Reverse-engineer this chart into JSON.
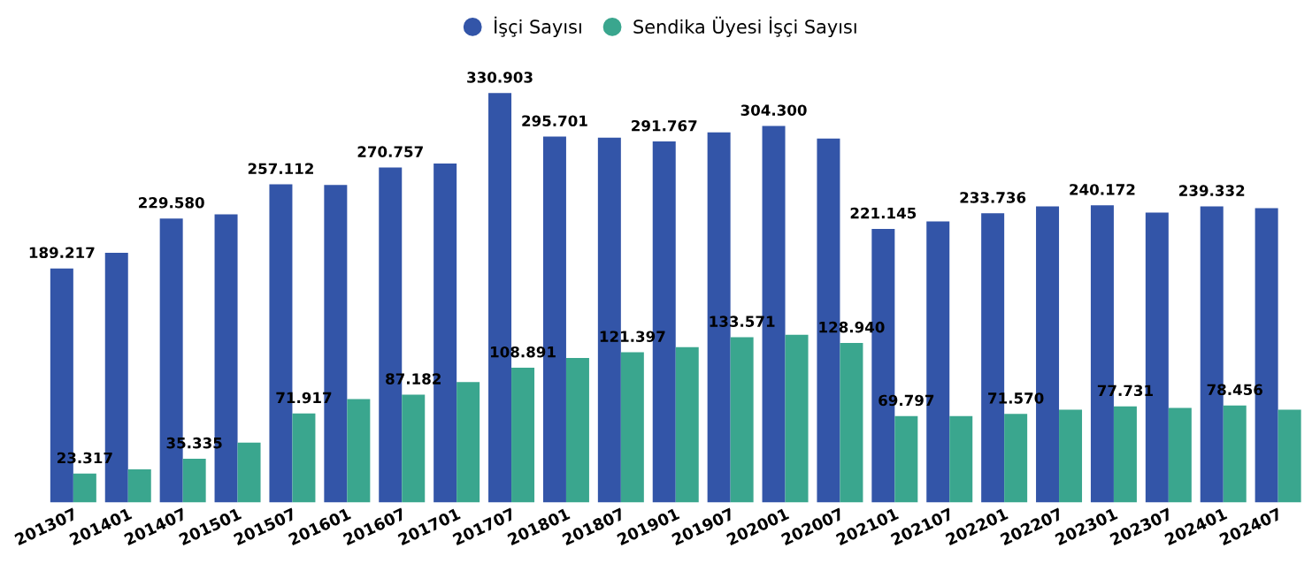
{
  "chart_data": {
    "type": "bar",
    "categories": [
      "201307",
      "201401",
      "201407",
      "201501",
      "201507",
      "201601",
      "201607",
      "201701",
      "201707",
      "201801",
      "201807",
      "201901",
      "201907",
      "202001",
      "202007",
      "202101",
      "202107",
      "202201",
      "202207",
      "202301",
      "202307",
      "202401",
      "202407"
    ],
    "series": [
      {
        "name": "İşçi Sayısı",
        "color": "#3355a8",
        "values": [
          189217,
          201900,
          229580,
          232900,
          257112,
          256700,
          270757,
          274000,
          330903,
          295701,
          294900,
          291767,
          299200,
          304300,
          294200,
          221145,
          227100,
          233736,
          239400,
          240172,
          234300,
          239332,
          237900
        ],
        "value_labels": [
          "189.217",
          null,
          "229.580",
          null,
          "257.112",
          null,
          "270.757",
          null,
          "330.903",
          "295.701",
          null,
          "291.767",
          null,
          "304.300",
          null,
          "221.145",
          null,
          "233.736",
          null,
          "240.172",
          null,
          "239.332",
          null
        ]
      },
      {
        "name": "Sendika Üyesi İşçi Sayısı",
        "color": "#3aa68e",
        "values": [
          23317,
          26700,
          35335,
          48300,
          71917,
          83600,
          87182,
          97300,
          108891,
          116800,
          121397,
          125500,
          133571,
          135500,
          128940,
          69797,
          69900,
          71570,
          75000,
          77731,
          76400,
          78456,
          75000
        ],
        "value_labels": [
          "23.317",
          null,
          "35.335",
          null,
          "71.917",
          null,
          "87.182",
          null,
          "108.891",
          null,
          "121.397",
          null,
          "133.571",
          null,
          "128.940",
          "69.797",
          null,
          "71.570",
          null,
          "77.731",
          null,
          "78.456",
          null
        ]
      }
    ],
    "legend": "top",
    "grid": false,
    "tick_labels": "x"
  }
}
